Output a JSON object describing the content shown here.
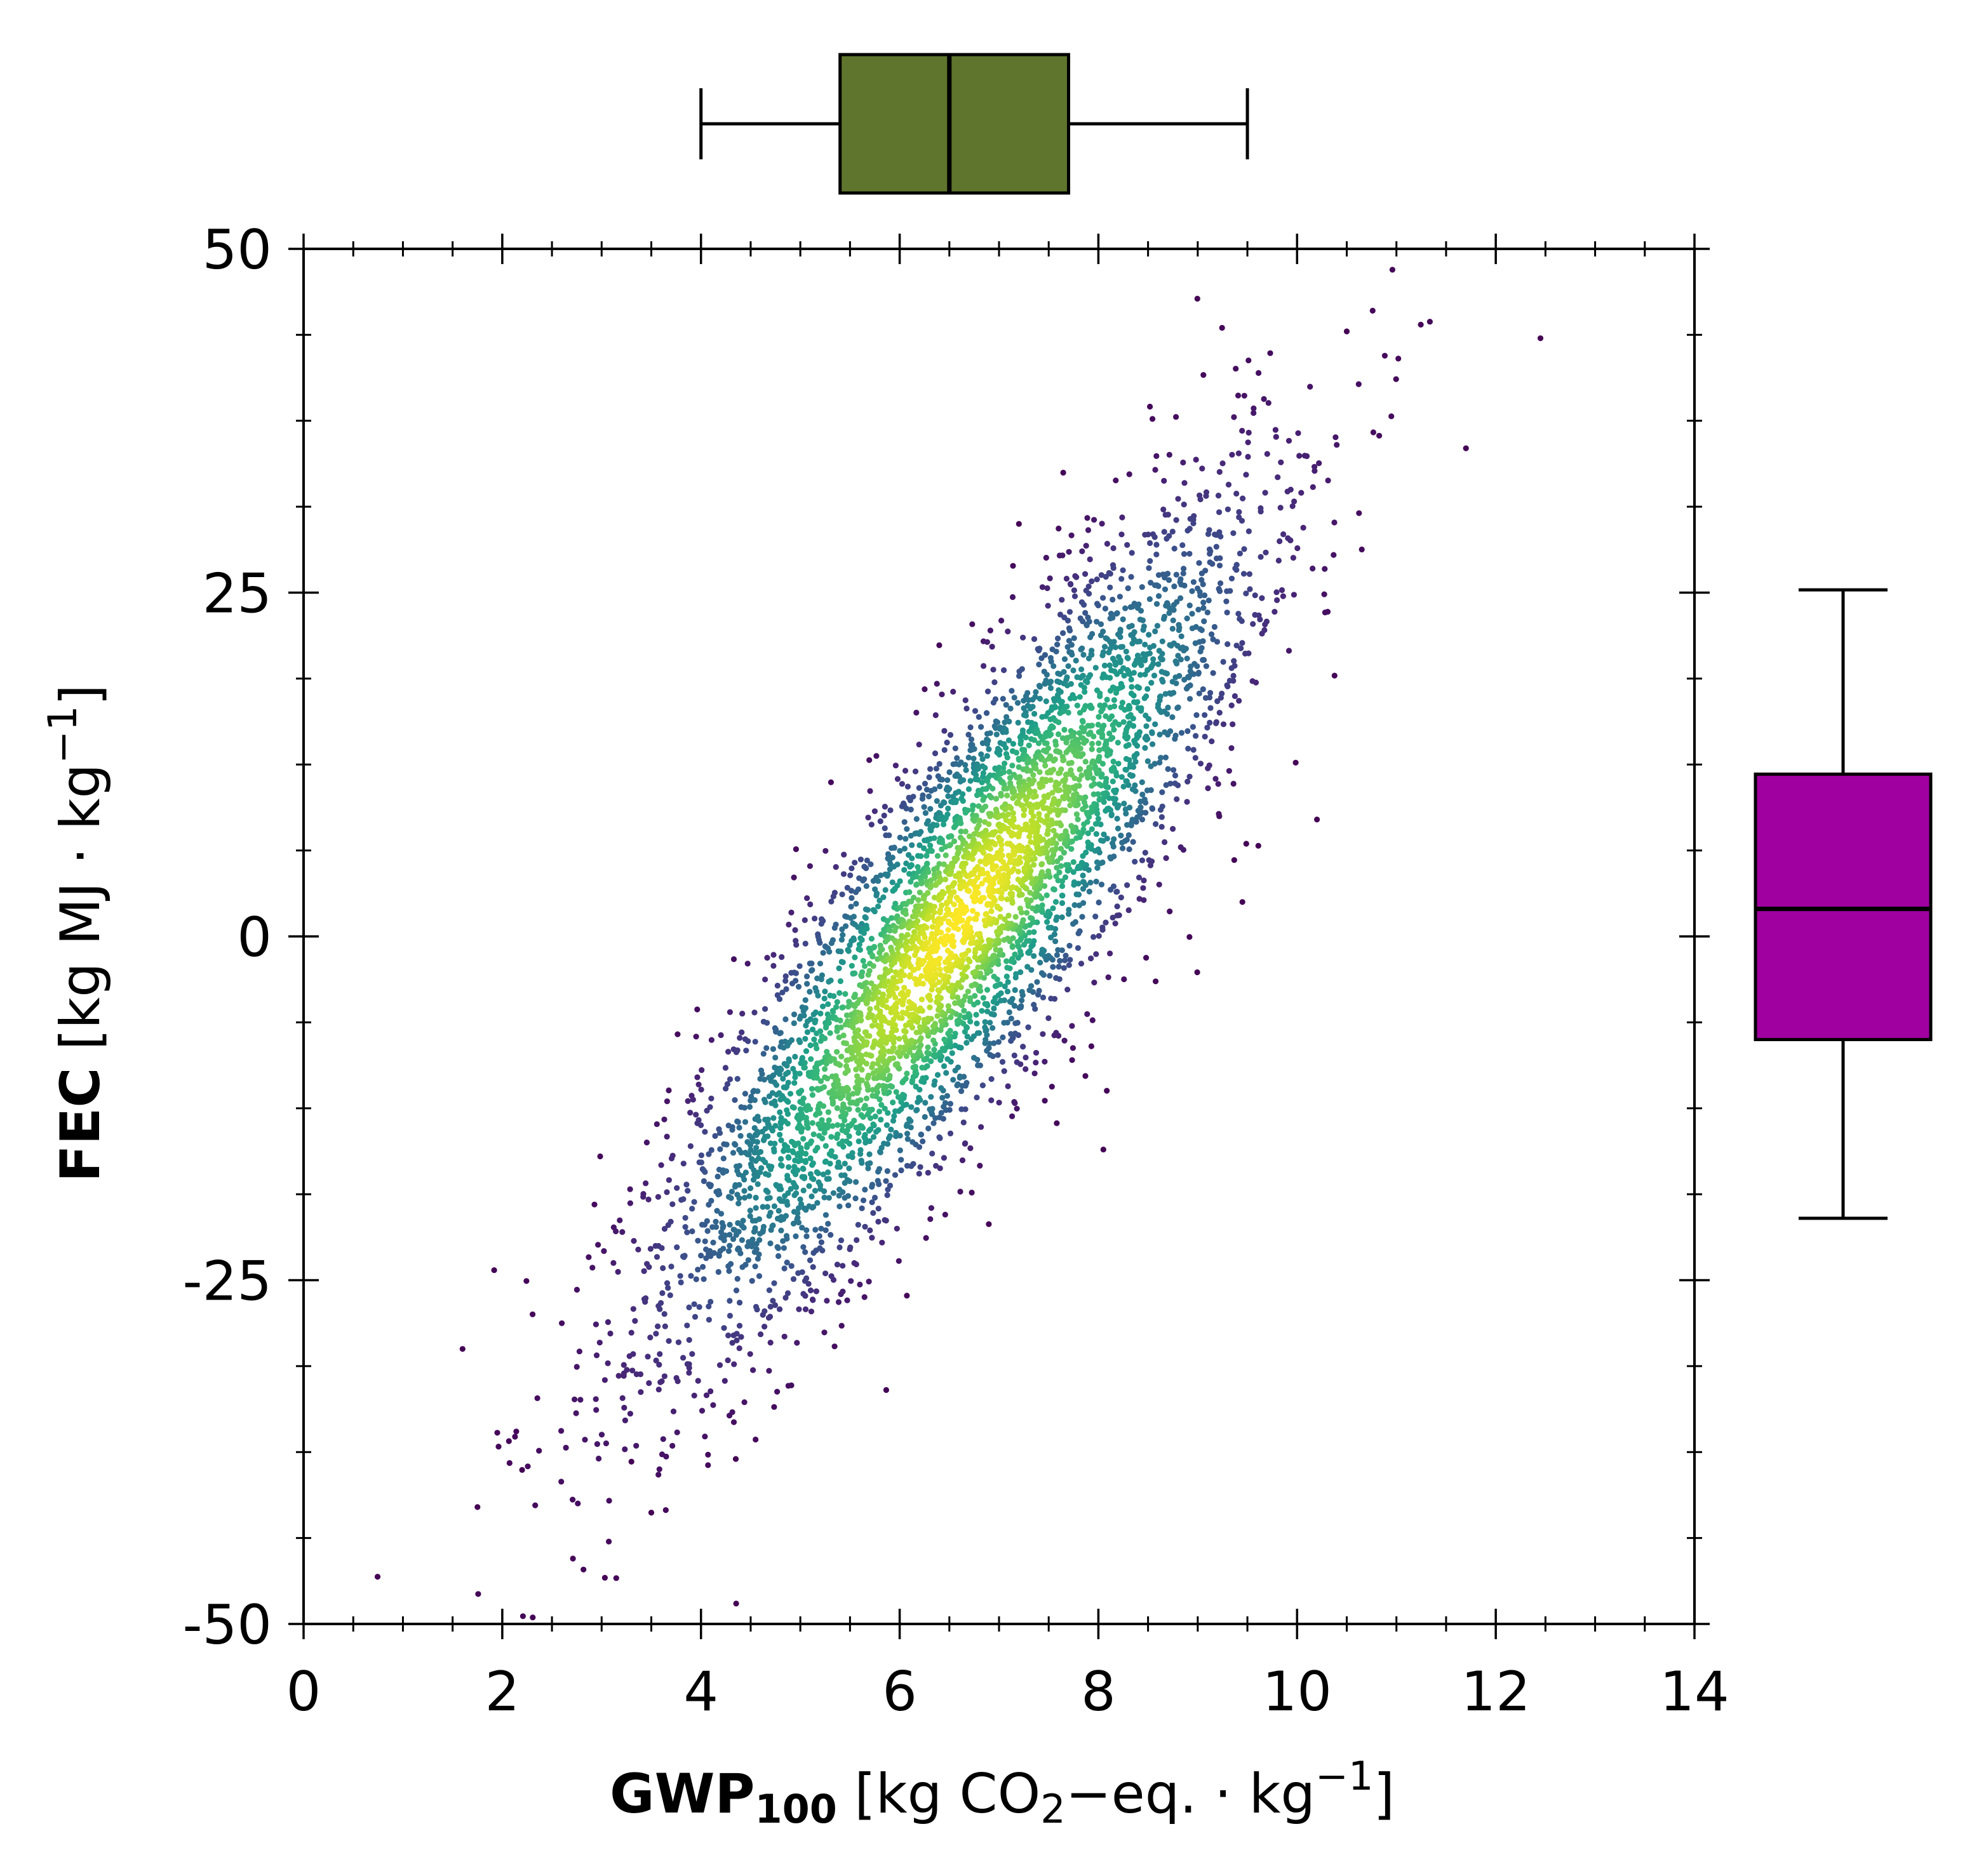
{
  "chart_data": {
    "type": "scatter",
    "title": "",
    "xlabel": {
      "bold": "GWP",
      "bold_sub": "100",
      "rest_a": " [kg CO",
      "rest_sub": "2",
      "rest_b": "−eq. · kg",
      "rest_sup": "−1",
      "rest_c": "]"
    },
    "ylabel": {
      "bold": "FEC",
      "rest_a": " [kg MJ · kg",
      "rest_sup": "−1",
      "rest_c": "]"
    },
    "xlim": [
      0,
      14
    ],
    "ylim": [
      -50,
      50
    ],
    "x_ticks": [
      {
        "value": 0,
        "label": "0"
      },
      {
        "value": 2,
        "label": "2"
      },
      {
        "value": 4,
        "label": "4"
      },
      {
        "value": 6,
        "label": "6"
      },
      {
        "value": 8,
        "label": "8"
      },
      {
        "value": 10,
        "label": "10"
      },
      {
        "value": 12,
        "label": "12"
      },
      {
        "value": 14,
        "label": "14"
      }
    ],
    "y_ticks": [
      {
        "value": -50,
        "label": "-50"
      },
      {
        "value": -25,
        "label": "-25"
      },
      {
        "value": 0,
        "label": "0"
      },
      {
        "value": 25,
        "label": "25"
      },
      {
        "value": 50,
        "label": "50"
      }
    ],
    "x_minor_step": 0.5,
    "y_minor_step": 6.25,
    "grid": false,
    "colormap": "viridis (point density)",
    "scatter_distribution": {
      "n": 5000,
      "x_mean": 6.6,
      "x_sd": 1.45,
      "y_mean": 1.0,
      "y_sd": 14.5,
      "correlation": 0.87
    },
    "outlier_points": [
      {
        "x": 12.45,
        "y": 43.5
      },
      {
        "x": 10.5,
        "y": 44.0
      },
      {
        "x": 1.75,
        "y": -41.5
      },
      {
        "x": 3.5,
        "y": -41.9
      },
      {
        "x": 1.6,
        "y": -30.0
      },
      {
        "x": 4.35,
        "y": -38.0
      },
      {
        "x": 8.05,
        "y": -15.5
      },
      {
        "x": 10.2,
        "y": 8.5
      },
      {
        "x": 9.45,
        "y": 2.5
      },
      {
        "x": 7.2,
        "y": 30.0
      },
      {
        "x": 11.7,
        "y": 35.5
      },
      {
        "x": 3.3,
        "y": -38.2
      },
      {
        "x": 2.2,
        "y": -38.8
      }
    ],
    "x_boxplot": {
      "whisker_low": 4.0,
      "q1": 5.4,
      "median": 6.5,
      "q3": 7.7,
      "whisker_high": 9.5,
      "color": "#5f752d"
    },
    "y_boxplot": {
      "whisker_low": -20.5,
      "q1": -7.5,
      "median": 2.0,
      "q3": 11.8,
      "whisker_high": 25.2,
      "color": "#a000a0"
    }
  }
}
